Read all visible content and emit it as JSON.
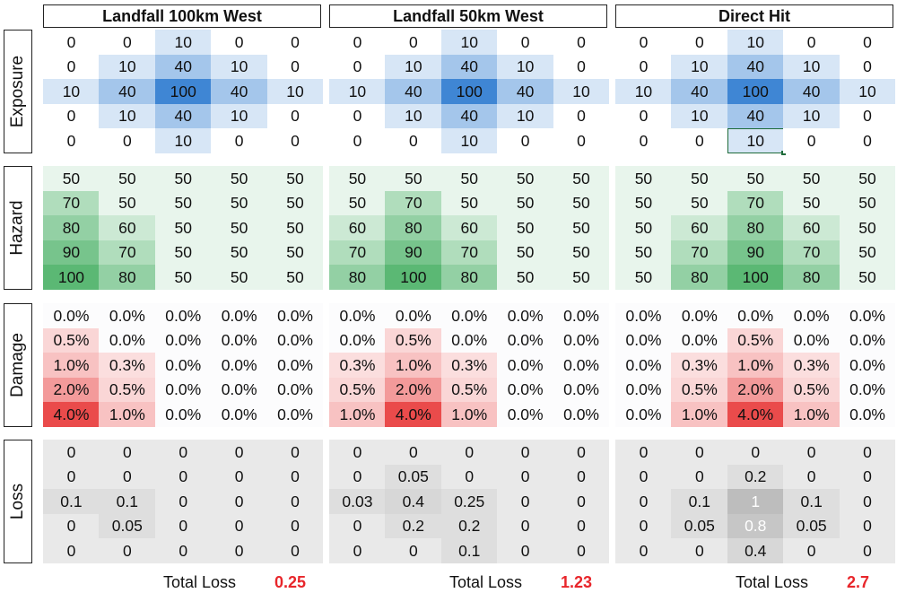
{
  "scenarios": [
    {
      "title": "Landfall 100km West",
      "total_label": "Total Loss",
      "total_value": "0.25",
      "exposure": [
        [
          "0",
          "0",
          "10",
          "0",
          "0"
        ],
        [
          "0",
          "10",
          "40",
          "10",
          "0"
        ],
        [
          "10",
          "40",
          "100",
          "40",
          "10"
        ],
        [
          "0",
          "10",
          "40",
          "10",
          "0"
        ],
        [
          "0",
          "0",
          "10",
          "0",
          "0"
        ]
      ],
      "hazard": [
        [
          "50",
          "50",
          "50",
          "50",
          "50"
        ],
        [
          "70",
          "50",
          "50",
          "50",
          "50"
        ],
        [
          "80",
          "60",
          "50",
          "50",
          "50"
        ],
        [
          "90",
          "70",
          "50",
          "50",
          "50"
        ],
        [
          "100",
          "80",
          "50",
          "50",
          "50"
        ]
      ],
      "damage": [
        [
          "0.0%",
          "0.0%",
          "0.0%",
          "0.0%",
          "0.0%"
        ],
        [
          "0.5%",
          "0.0%",
          "0.0%",
          "0.0%",
          "0.0%"
        ],
        [
          "1.0%",
          "0.3%",
          "0.0%",
          "0.0%",
          "0.0%"
        ],
        [
          "2.0%",
          "0.5%",
          "0.0%",
          "0.0%",
          "0.0%"
        ],
        [
          "4.0%",
          "1.0%",
          "0.0%",
          "0.0%",
          "0.0%"
        ]
      ],
      "loss": [
        [
          "0",
          "0",
          "0",
          "0",
          "0"
        ],
        [
          "0",
          "0",
          "0",
          "0",
          "0"
        ],
        [
          "0.1",
          "0.1",
          "0",
          "0",
          "0"
        ],
        [
          "0",
          "0.05",
          "0",
          "0",
          "0"
        ],
        [
          "0",
          "0",
          "0",
          "0",
          "0"
        ]
      ]
    },
    {
      "title": "Landfall 50km West",
      "total_label": "Total Loss",
      "total_value": "1.23",
      "exposure": [
        [
          "0",
          "0",
          "10",
          "0",
          "0"
        ],
        [
          "0",
          "10",
          "40",
          "10",
          "0"
        ],
        [
          "10",
          "40",
          "100",
          "40",
          "10"
        ],
        [
          "0",
          "10",
          "40",
          "10",
          "0"
        ],
        [
          "0",
          "0",
          "10",
          "0",
          "0"
        ]
      ],
      "hazard": [
        [
          "50",
          "50",
          "50",
          "50",
          "50"
        ],
        [
          "50",
          "70",
          "50",
          "50",
          "50"
        ],
        [
          "60",
          "80",
          "60",
          "50",
          "50"
        ],
        [
          "70",
          "90",
          "70",
          "50",
          "50"
        ],
        [
          "80",
          "100",
          "80",
          "50",
          "50"
        ]
      ],
      "damage": [
        [
          "0.0%",
          "0.0%",
          "0.0%",
          "0.0%",
          "0.0%"
        ],
        [
          "0.0%",
          "0.5%",
          "0.0%",
          "0.0%",
          "0.0%"
        ],
        [
          "0.3%",
          "1.0%",
          "0.3%",
          "0.0%",
          "0.0%"
        ],
        [
          "0.5%",
          "2.0%",
          "0.5%",
          "0.0%",
          "0.0%"
        ],
        [
          "1.0%",
          "4.0%",
          "1.0%",
          "0.0%",
          "0.0%"
        ]
      ],
      "loss": [
        [
          "0",
          "0",
          "0",
          "0",
          "0"
        ],
        [
          "0",
          "0.05",
          "0",
          "0",
          "0"
        ],
        [
          "0.03",
          "0.4",
          "0.25",
          "0",
          "0"
        ],
        [
          "0",
          "0.2",
          "0.2",
          "0",
          "0"
        ],
        [
          "0",
          "0",
          "0.1",
          "0",
          "0"
        ]
      ]
    },
    {
      "title": "Direct Hit",
      "total_label": "Total Loss",
      "total_value": "2.7",
      "exposure": [
        [
          "0",
          "0",
          "10",
          "0",
          "0"
        ],
        [
          "0",
          "10",
          "40",
          "10",
          "0"
        ],
        [
          "10",
          "40",
          "100",
          "40",
          "10"
        ],
        [
          "0",
          "10",
          "40",
          "10",
          "0"
        ],
        [
          "0",
          "0",
          "10",
          "0",
          "0"
        ]
      ],
      "hazard": [
        [
          "50",
          "50",
          "50",
          "50",
          "50"
        ],
        [
          "50",
          "50",
          "70",
          "50",
          "50"
        ],
        [
          "50",
          "60",
          "80",
          "60",
          "50"
        ],
        [
          "50",
          "70",
          "90",
          "70",
          "50"
        ],
        [
          "50",
          "80",
          "100",
          "80",
          "50"
        ]
      ],
      "damage": [
        [
          "0.0%",
          "0.0%",
          "0.0%",
          "0.0%",
          "0.0%"
        ],
        [
          "0.0%",
          "0.0%",
          "0.5%",
          "0.0%",
          "0.0%"
        ],
        [
          "0.0%",
          "0.3%",
          "1.0%",
          "0.3%",
          "0.0%"
        ],
        [
          "0.0%",
          "0.5%",
          "2.0%",
          "0.5%",
          "0.0%"
        ],
        [
          "0.0%",
          "1.0%",
          "4.0%",
          "1.0%",
          "0.0%"
        ]
      ],
      "loss": [
        [
          "0",
          "0",
          "0",
          "0",
          "0"
        ],
        [
          "0",
          "0",
          "0.2",
          "0",
          "0"
        ],
        [
          "0",
          "0.1",
          "1",
          "0.1",
          "0"
        ],
        [
          "0",
          "0.05",
          "0.8",
          "0.05",
          "0"
        ],
        [
          "0",
          "0",
          "0.4",
          "0",
          "0"
        ]
      ]
    }
  ],
  "section_labels": [
    "Exposure",
    "Hazard",
    "Damage",
    "Loss"
  ],
  "selected_cell": {
    "scenario": 2,
    "section": "exposure",
    "row": 4,
    "col": 2
  },
  "colors": {
    "exposure": "#3f86d4",
    "hazard": "#5bb874",
    "damage": "#ea4b4b",
    "loss_dark": "#bdbdbd",
    "total_value": "#e8262b",
    "selection": "#1e6b3a"
  }
}
